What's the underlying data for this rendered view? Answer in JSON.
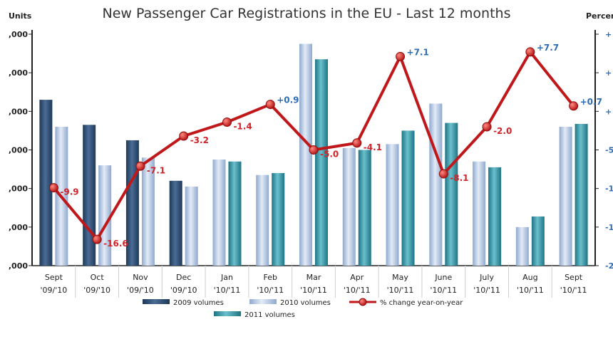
{
  "chart_data": {
    "type": "bar",
    "title": "New Passenger Car Registrations in the EU - Last 12 months",
    "ylabel": "Units",
    "y2label": "Percent",
    "ylim": [
      0,
      1200000
    ],
    "y_tick_labels": [
      ",000",
      ",000",
      ",000",
      ",000",
      ",000",
      ",000",
      ",000"
    ],
    "y2lim": [
      -20,
      10
    ],
    "y2_tick_labels": [
      "+",
      "+",
      "+",
      "-5",
      "-1",
      "-1",
      "-2"
    ],
    "categories": [
      [
        "Sept",
        "'09/'10"
      ],
      [
        "Oct",
        "'09/'10"
      ],
      [
        "Nov",
        "'09/'10"
      ],
      [
        "Dec",
        "'09/'10"
      ],
      [
        "Jan",
        "'10/'11"
      ],
      [
        "Feb",
        "'10/'11"
      ],
      [
        "Mar",
        "'10/'11"
      ],
      [
        "Apr",
        "'10/'11"
      ],
      [
        "May",
        "'10/'11"
      ],
      [
        "June",
        "'10/'11"
      ],
      [
        "July",
        "'10/'11"
      ],
      [
        "Aug",
        "'10/'11"
      ],
      [
        "Sept",
        "'10/'11"
      ]
    ],
    "series": [
      {
        "name": "2009 volumes",
        "kind": "bar",
        "color": "#2f4f75",
        "values": [
          860000,
          730000,
          650000,
          440000,
          null,
          null,
          null,
          null,
          null,
          null,
          null,
          null,
          null
        ]
      },
      {
        "name": "2010 volumes",
        "kind": "bar",
        "color": "#b8c9e3",
        "values": [
          720000,
          520000,
          560000,
          410000,
          550000,
          470000,
          1150000,
          610000,
          630000,
          840000,
          540000,
          200000,
          720000
        ]
      },
      {
        "name": "2011 volumes",
        "kind": "bar",
        "color": "#3e9bab",
        "values": [
          null,
          null,
          null,
          null,
          540000,
          480000,
          1070000,
          600000,
          700000,
          740000,
          510000,
          255000,
          735000
        ]
      },
      {
        "name": "% change year-on-year",
        "kind": "line",
        "axis": "right",
        "color": "#c0181a",
        "values": [
          -9.9,
          -16.6,
          -7.1,
          -3.2,
          -1.4,
          0.9,
          -5.0,
          -4.1,
          7.1,
          -8.1,
          -2.0,
          7.7,
          0.7
        ],
        "labels": [
          "-9.9",
          "-16.6",
          "-7.1",
          "-3.2",
          "-1.4",
          "+0.9",
          "-5.0",
          "-4.1",
          "+7.1",
          "-8.1",
          "-2.0",
          "+7.7",
          "+0.7"
        ]
      }
    ],
    "legend": {
      "position": "bottom",
      "items": [
        "2009 volumes",
        "2010 volumes",
        "% change year-on-year",
        "2011 volumes"
      ]
    },
    "grid": false
  }
}
